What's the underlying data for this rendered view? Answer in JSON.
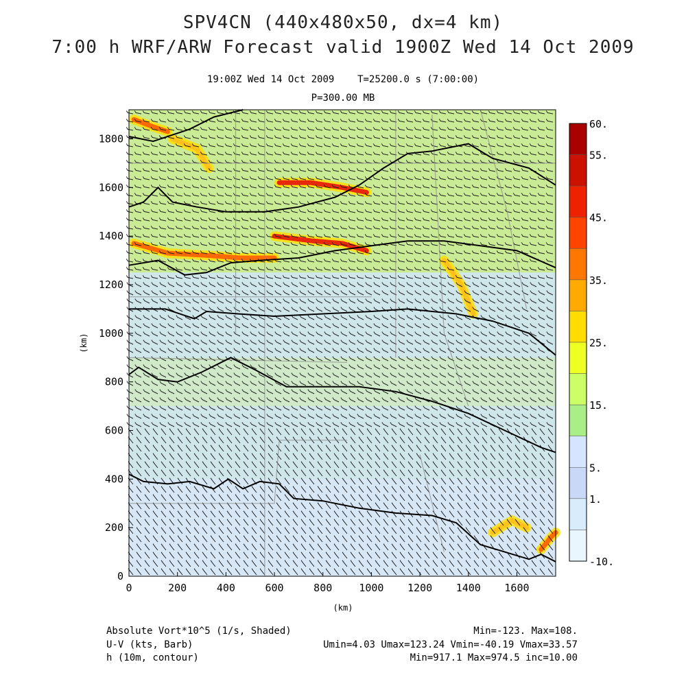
{
  "header": {
    "title_line1": "SPV4CN (440x480x50, dx=4 km)",
    "title_line2": "7:00 h WRF/ARW Forecast valid 1900Z Wed 14 Oct 2009",
    "valid_time": "19:00Z Wed 14 Oct 2009",
    "forecast_time": "T=25200.0 s (7:00:00)",
    "level": "P=300.00 MB"
  },
  "footer": {
    "shaded_label": "Absolute Vort*10^5 (1/s, Shaded)",
    "shaded_stats": "Min=-123. Max=108.",
    "barb_label": "U-V (kts, Barb)",
    "barb_stats": "Umin=4.03 Umax=123.24 Vmin=-40.19 Vmax=33.57",
    "contour_label": "h (10m, contour)",
    "contour_stats": "Min=917.1 Max=974.5 inc=10.00"
  },
  "chart_data": {
    "type": "heatmap",
    "xlabel": "(km)",
    "ylabel": "(km)",
    "xlim": [
      0,
      1760
    ],
    "ylim": [
      0,
      1920
    ],
    "x_ticks": [
      0,
      200,
      400,
      600,
      800,
      1000,
      1200,
      1400,
      1600
    ],
    "y_ticks": [
      0,
      200,
      400,
      600,
      800,
      1000,
      1200,
      1400,
      1600,
      1800
    ],
    "colorbar": {
      "labels": [
        "60.",
        "55.",
        "45.",
        "35.",
        "25.",
        "15.",
        "5.",
        "1.",
        "-10."
      ],
      "colors": [
        "#aa0000",
        "#cc1100",
        "#ee2200",
        "#ff4400",
        "#ff7700",
        "#ffaa00",
        "#ffdd00",
        "#eeff22",
        "#ccff66",
        "#aaee88",
        "#d6e4ff",
        "#c9d8f7",
        "#d8ecfb",
        "#eaf6fd"
      ]
    },
    "background_color": "#cfe6ea",
    "contours_km": [
      [
        [
          0,
          1810
        ],
        [
          100,
          1790
        ],
        [
          250,
          1840
        ],
        [
          350,
          1890
        ],
        [
          470,
          1920
        ]
      ],
      [
        [
          0,
          1520
        ],
        [
          60,
          1540
        ],
        [
          120,
          1600
        ],
        [
          180,
          1540
        ],
        [
          280,
          1520
        ],
        [
          400,
          1500
        ],
        [
          560,
          1500
        ],
        [
          700,
          1520
        ],
        [
          850,
          1560
        ],
        [
          950,
          1610
        ],
        [
          1050,
          1680
        ],
        [
          1150,
          1740
        ],
        [
          1250,
          1750
        ],
        [
          1400,
          1780
        ],
        [
          1500,
          1720
        ],
        [
          1650,
          1680
        ],
        [
          1760,
          1610
        ]
      ],
      [
        [
          0,
          1280
        ],
        [
          120,
          1300
        ],
        [
          230,
          1240
        ],
        [
          320,
          1250
        ],
        [
          420,
          1290
        ],
        [
          540,
          1300
        ],
        [
          700,
          1310
        ],
        [
          850,
          1340
        ],
        [
          1000,
          1360
        ],
        [
          1150,
          1380
        ],
        [
          1300,
          1380
        ],
        [
          1450,
          1360
        ],
        [
          1600,
          1340
        ],
        [
          1760,
          1270
        ]
      ],
      [
        [
          0,
          1100
        ],
        [
          150,
          1100
        ],
        [
          270,
          1060
        ],
        [
          320,
          1090
        ],
        [
          450,
          1080
        ],
        [
          600,
          1070
        ],
        [
          800,
          1080
        ],
        [
          1000,
          1090
        ],
        [
          1150,
          1100
        ],
        [
          1350,
          1080
        ],
        [
          1500,
          1050
        ],
        [
          1650,
          1000
        ],
        [
          1760,
          910
        ]
      ],
      [
        [
          0,
          830
        ],
        [
          40,
          860
        ],
        [
          120,
          810
        ],
        [
          200,
          800
        ],
        [
          300,
          840
        ],
        [
          420,
          900
        ],
        [
          520,
          850
        ],
        [
          650,
          780
        ],
        [
          800,
          780
        ],
        [
          950,
          780
        ],
        [
          1100,
          760
        ],
        [
          1250,
          720
        ],
        [
          1400,
          670
        ],
        [
          1550,
          600
        ],
        [
          1700,
          530
        ],
        [
          1760,
          510
        ]
      ],
      [
        [
          0,
          420
        ],
        [
          60,
          390
        ],
        [
          160,
          380
        ],
        [
          250,
          390
        ],
        [
          350,
          360
        ],
        [
          410,
          400
        ],
        [
          470,
          360
        ],
        [
          540,
          390
        ],
        [
          620,
          380
        ],
        [
          680,
          320
        ],
        [
          800,
          310
        ],
        [
          950,
          280
        ],
        [
          1100,
          260
        ],
        [
          1250,
          250
        ],
        [
          1350,
          220
        ],
        [
          1450,
          130
        ],
        [
          1550,
          100
        ],
        [
          1650,
          70
        ],
        [
          1700,
          90
        ],
        [
          1760,
          60
        ]
      ]
    ],
    "high_vorticity_bands_km": [
      {
        "value": 45,
        "points": [
          [
            620,
            1620
          ],
          [
            750,
            1620
          ],
          [
            880,
            1600
          ],
          [
            980,
            1580
          ]
        ]
      },
      {
        "value": 35,
        "points": [
          [
            20,
            1370
          ],
          [
            160,
            1330
          ],
          [
            330,
            1320
          ],
          [
            460,
            1310
          ],
          [
            600,
            1310
          ]
        ]
      },
      {
        "value": 45,
        "points": [
          [
            600,
            1400
          ],
          [
            760,
            1380
          ],
          [
            880,
            1370
          ],
          [
            980,
            1340
          ]
        ]
      },
      {
        "value": 35,
        "points": [
          [
            20,
            1880
          ],
          [
            100,
            1850
          ],
          [
            160,
            1830
          ]
        ]
      },
      {
        "value": 25,
        "points": [
          [
            180,
            1800
          ],
          [
            280,
            1760
          ],
          [
            330,
            1680
          ]
        ]
      },
      {
        "value": 25,
        "points": [
          [
            1300,
            1300
          ],
          [
            1370,
            1200
          ],
          [
            1420,
            1080
          ]
        ]
      },
      {
        "value": 25,
        "points": [
          [
            1500,
            180
          ],
          [
            1580,
            230
          ],
          [
            1640,
            200
          ]
        ]
      },
      {
        "value": 35,
        "points": [
          [
            1700,
            110
          ],
          [
            1740,
            160
          ],
          [
            1760,
            180
          ]
        ]
      }
    ]
  }
}
